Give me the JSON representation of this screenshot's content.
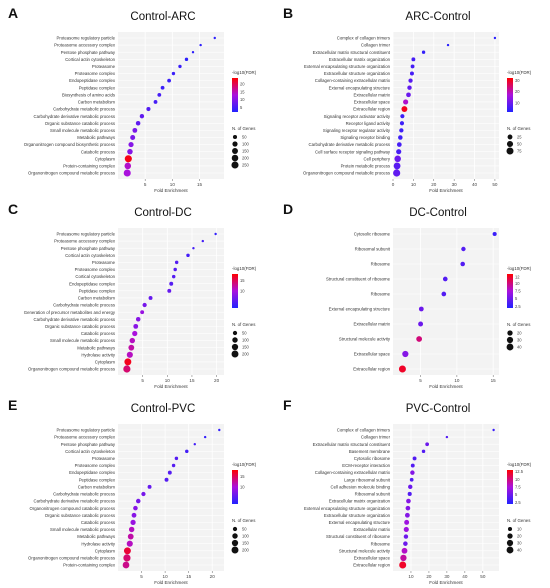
{
  "chart_data": [
    {
      "type": "scatter",
      "letter": "A",
      "title": "Control-ARC",
      "xlabel": "Fold Enrichment",
      "xticks": [
        5,
        10,
        15
      ],
      "xlim": [
        0,
        19.5
      ],
      "legend_color_title": "-log10(FDR)",
      "color_ticks": [
        5,
        10,
        15,
        20
      ],
      "color_range": [
        2,
        24
      ],
      "legend_size_title": "N. of Genes",
      "size_ticks": [
        50,
        100,
        150,
        200,
        250
      ],
      "size_range": [
        20,
        260
      ],
      "terms": [
        "Proteasome regulatory particle",
        "Proteasome accessory complex",
        "Pentose phosphate pathway",
        "Cortical actin cytoskeleton",
        "Proteasome",
        "Proteasome complex",
        "Endopeptidase complex",
        "Peptidase complex",
        "Biosynthesis of amino acids",
        "Carbon metabolism",
        "Carbohydrate metabolic process",
        "Carbohydrate derivative metabolic process",
        "Organic substance catabolic process",
        "Small molecule metabolic process",
        "Metabolic pathways",
        "Organonitrogen compound biosynthetic process",
        "Catabolic process",
        "Cytoplasm",
        "Protein-containing complex",
        "Organonitrogen compound metabolic process"
      ],
      "fold": [
        17.8,
        15.2,
        13.8,
        12.6,
        11.4,
        10.2,
        9.4,
        8.2,
        7.6,
        6.9,
        5.6,
        4.4,
        3.7,
        3.1,
        2.7,
        2.4,
        2.2,
        1.9,
        1.8,
        1.7
      ],
      "fdr": [
        3,
        3,
        3,
        3,
        4,
        4,
        4,
        4,
        5,
        5,
        6,
        7,
        7,
        9,
        9,
        10,
        10,
        23,
        14,
        13
      ],
      "genes": [
        20,
        20,
        20,
        30,
        30,
        30,
        40,
        40,
        40,
        40,
        50,
        60,
        70,
        80,
        90,
        100,
        120,
        250,
        200,
        250
      ]
    },
    {
      "type": "scatter",
      "letter": "B",
      "title": "ARC-Control",
      "xlabel": "Fold Enrichment",
      "xticks": [
        0,
        10,
        20,
        30,
        40,
        50
      ],
      "xlim": [
        0,
        52
      ],
      "legend_color_title": "-log10(FDR)",
      "color_ticks": [
        10,
        20,
        30
      ],
      "color_range": [
        2,
        32
      ],
      "legend_size_title": "N. of Genes",
      "size_ticks": [
        25,
        50,
        75
      ],
      "size_range": [
        5,
        80
      ],
      "terms": [
        "Complex of collagen trimers",
        "Collagen trimer",
        "Extracellular matrix structural constituent",
        "Extracellular matrix organization",
        "External encapsulating structure organization",
        "Extracellular structure organization",
        "Collagen-containing extracellular matrix",
        "External encapsulating structure",
        "Extracellular matrix",
        "Extracellular space",
        "Extracellular region",
        "Signaling receptor activator activity",
        "Receptor ligand activity",
        "Signaling receptor regulator activity",
        "Signaling receptor binding",
        "Carbohydrate derivative metabolic process",
        "Cell surface receptor signaling pathway",
        "Cell periphery",
        "Protein metabolic process",
        "Organonitrogen compound metabolic process"
      ],
      "fold": [
        50,
        27,
        15,
        10,
        9.6,
        9.3,
        8.6,
        8.1,
        7.6,
        6.2,
        5.6,
        4.6,
        4.4,
        4.1,
        3.6,
        3.1,
        2.8,
        2.3,
        2.0,
        1.8
      ],
      "fdr": [
        3,
        3,
        4,
        6,
        6,
        6,
        8,
        9,
        10,
        18,
        30,
        5,
        5,
        5,
        5,
        6,
        6,
        10,
        8,
        9
      ],
      "genes": [
        5,
        5,
        8,
        12,
        12,
        13,
        16,
        18,
        22,
        30,
        45,
        15,
        15,
        17,
        20,
        22,
        30,
        60,
        70,
        80
      ]
    },
    {
      "type": "scatter",
      "letter": "C",
      "title": "Control-DC",
      "xlabel": "Fold Enrichment",
      "xticks": [
        5,
        10,
        15,
        20
      ],
      "xlim": [
        0,
        21.5
      ],
      "legend_color_title": "-log10(FDR)",
      "color_ticks": [
        10,
        15
      ],
      "color_range": [
        2,
        18
      ],
      "legend_size_title": "N. of Genes",
      "size_ticks": [
        50,
        100,
        150,
        200
      ],
      "size_range": [
        20,
        220
      ],
      "terms": [
        "Proteasome regulatory particle",
        "Proteasome accessory complex",
        "Pentose phosphate pathway",
        "Cortical actin cytoskeleton",
        "Proteasome",
        "Proteasome complex",
        "Cortical cytoskeleton",
        "Endopeptidase complex",
        "Peptidase complex",
        "Carbon metabolism",
        "Carbohydrate metabolic process",
        "Generation of precursor metabolites and energy",
        "Carbohydrate derivative metabolic process",
        "Organic substance catabolic process",
        "Catabolic process",
        "Small molecule metabolic process",
        "Metabolic pathways",
        "Hydrolase activity",
        "Cytoplasm",
        "Organonitrogen compound metabolic process"
      ],
      "fold": [
        19.8,
        17.2,
        15.3,
        14.2,
        11.9,
        11.6,
        11.3,
        10.8,
        10.4,
        6.6,
        5.4,
        4.9,
        4.1,
        3.6,
        3.4,
        2.9,
        2.7,
        2.4,
        2.0,
        1.8
      ],
      "fdr": [
        3,
        4,
        4,
        4,
        5,
        5,
        5,
        5,
        6,
        6,
        7,
        9,
        8,
        8,
        10,
        11,
        12,
        11,
        17,
        14
      ],
      "genes": [
        20,
        20,
        20,
        30,
        30,
        30,
        30,
        40,
        40,
        40,
        50,
        40,
        60,
        70,
        90,
        100,
        120,
        140,
        200,
        220
      ]
    },
    {
      "type": "scatter",
      "letter": "D",
      "title": "DC-Control",
      "xlabel": "Fold Enrichment",
      "xticks": [
        5,
        10,
        15
      ],
      "xlim": [
        1.2,
        15.8
      ],
      "legend_color_title": "-log10(FDR)",
      "color_ticks": [
        2.5,
        5,
        7.5,
        10,
        12
      ],
      "color_range": [
        2,
        13
      ],
      "legend_size_title": "N. of Genes",
      "size_ticks": [
        20,
        30,
        40
      ],
      "size_range": [
        5,
        45
      ],
      "terms": [
        "Cytosolic ribosome",
        "Ribosomal subunit",
        "Ribosome",
        "Structural constituent of ribosome",
        "Ribosome",
        "External encapsulating structure",
        "Extracellular matrix",
        "Structural molecule activity",
        "Extracellular space",
        "Extracellular region"
      ],
      "fold": [
        15.2,
        10.9,
        10.8,
        8.4,
        8.2,
        5.1,
        5.0,
        4.8,
        2.9,
        2.5
      ],
      "fdr": [
        3,
        4,
        4,
        4,
        4,
        5,
        5,
        10,
        6,
        12
      ],
      "genes": [
        10,
        12,
        13,
        14,
        14,
        15,
        16,
        25,
        30,
        42
      ]
    },
    {
      "type": "scatter",
      "letter": "E",
      "title": "Control-PVC",
      "xlabel": "Fold Enrichment",
      "xticks": [
        5,
        10,
        15,
        20
      ],
      "xlim": [
        0,
        22.5
      ],
      "legend_color_title": "-log10(FDR)",
      "color_ticks": [
        10,
        15
      ],
      "color_range": [
        2,
        18
      ],
      "legend_size_title": "N. of Genes",
      "size_ticks": [
        50,
        100,
        150,
        200
      ],
      "size_range": [
        20,
        220
      ],
      "terms": [
        "Proteasome regulatory particle",
        "Proteasome accessory complex",
        "Pentose phosphate pathway",
        "Cortical actin cytoskeleton",
        "Proteasome",
        "Proteasome complex",
        "Endopeptidase complex",
        "Peptidase complex",
        "Carbon metabolism",
        "Carbohydrate metabolic process",
        "Carbohydrate derivative metabolic process",
        "Organonitrogen compound catabolic process",
        "Organic substance catabolic process",
        "Catabolic process",
        "Small molecule metabolic process",
        "Metabolic pathways",
        "Hydrolase activity",
        "Cytoplasm",
        "Organonitrogen compound metabolic process",
        "Protein-containing complex"
      ],
      "fold": [
        21.5,
        18.5,
        16.3,
        14.6,
        12.4,
        11.8,
        11.0,
        10.3,
        6.7,
        5.4,
        4.3,
        3.7,
        3.4,
        3.2,
        2.9,
        2.7,
        2.5,
        2.0,
        1.9,
        1.7
      ],
      "fdr": [
        3,
        3,
        4,
        4,
        5,
        5,
        5,
        5,
        6,
        7,
        7,
        8,
        8,
        9,
        11,
        12,
        11,
        16,
        14,
        13
      ],
      "genes": [
        20,
        20,
        20,
        30,
        30,
        30,
        40,
        40,
        40,
        50,
        60,
        60,
        70,
        90,
        100,
        120,
        140,
        200,
        220,
        180
      ]
    },
    {
      "type": "scatter",
      "letter": "F",
      "title": "PVC-Control",
      "xlabel": "Fold Enrichment",
      "xticks": [
        10,
        20,
        30,
        40,
        50
      ],
      "xlim": [
        0,
        59
      ],
      "legend_color_title": "-log10(FDR)",
      "color_ticks": [
        2.5,
        5,
        7.5,
        10,
        12.5
      ],
      "color_range": [
        2,
        13
      ],
      "legend_size_title": "N. of Genes",
      "size_ticks": [
        10,
        20,
        30,
        40
      ],
      "size_range": [
        5,
        45
      ],
      "terms": [
        "Complex of collagen trimers",
        "Collagen trimer",
        "Extracellular matrix structural constituent",
        "Basement membrane",
        "Cytosolic ribosome",
        "ECM-receptor interaction",
        "Collagen-containing extracellular matrix",
        "Large ribosomal subunit",
        "Cell adhesion molecule binding",
        "Ribosomal subunit",
        "Extracellular matrix organization",
        "External encapsulating structure organization",
        "Extracellular structure organization",
        "External encapsulating structure",
        "Extracellular matrix",
        "Structural constituent of ribosome",
        "Ribosome",
        "Structural molecule activity",
        "Extracellular space",
        "Extracellular region"
      ],
      "fold": [
        56,
        30,
        19,
        17,
        12,
        11,
        10.8,
        10.4,
        9.6,
        9.3,
        8.6,
        8.3,
        8.0,
        7.6,
        7.4,
        7.2,
        6.9,
        6.4,
        5.8,
        5.4
      ],
      "fdr": [
        3,
        4,
        5,
        4,
        4,
        4,
        6,
        4,
        5,
        4,
        6,
        6,
        6,
        7,
        7,
        5,
        5,
        8,
        9,
        12
      ],
      "genes": [
        5,
        5,
        8,
        7,
        9,
        9,
        12,
        8,
        12,
        10,
        14,
        14,
        15,
        16,
        18,
        12,
        13,
        25,
        32,
        42
      ]
    }
  ]
}
